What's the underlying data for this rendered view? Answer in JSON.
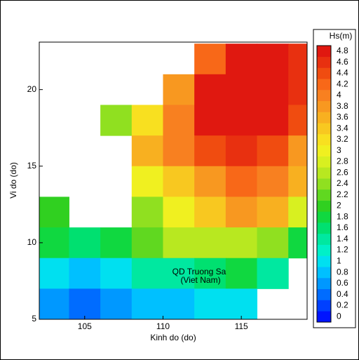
{
  "chart_data": {
    "type": "field",
    "x_label": "Kinh do (do)",
    "y_label": "Vi do (do)",
    "colorbar_label": "Hs(m)",
    "annotations": [
      "QD Truong Sa",
      "(Viet Nam)"
    ],
    "xlim": [
      102.1,
      119.2
    ],
    "ylim": [
      5,
      23.1
    ],
    "xticks": [
      105,
      110,
      115
    ],
    "yticks": [
      5,
      10,
      15,
      20
    ],
    "x": [
      103,
      105,
      107,
      109,
      111,
      113,
      115,
      117,
      119
    ],
    "y": [
      22,
      20,
      18,
      16,
      14,
      12,
      10,
      8,
      6
    ],
    "values": [
      [
        null,
        null,
        null,
        null,
        null,
        4.3,
        4.8,
        4.8,
        4.6
      ],
      [
        null,
        null,
        null,
        null,
        3.8,
        4.8,
        4.9,
        4.9,
        4.6
      ],
      [
        null,
        null,
        2.4,
        3.2,
        4.0,
        4.8,
        4.9,
        4.9,
        4.4
      ],
      [
        null,
        null,
        null,
        3.6,
        4.0,
        4.4,
        4.6,
        4.4,
        3.8
      ],
      [
        null,
        null,
        null,
        3.0,
        3.4,
        3.8,
        4.2,
        4.0,
        3.6
      ],
      [
        2.0,
        null,
        null,
        2.4,
        3.0,
        3.4,
        3.8,
        3.6,
        2.8
      ],
      [
        1.8,
        1.6,
        1.8,
        2.2,
        2.6,
        2.6,
        2.6,
        2.4,
        1.8
      ],
      [
        1.0,
        0.8,
        1.0,
        1.4,
        1.4,
        1.6,
        1.8,
        1.4,
        null
      ],
      [
        0.6,
        0.4,
        0.6,
        0.8,
        0.8,
        1.0,
        1.0,
        null,
        null
      ]
    ],
    "clim": [
      -0.1,
      4.9
    ],
    "cticks": [
      0,
      0.2,
      0.4,
      0.6,
      0.8,
      1,
      1.2,
      1.4,
      1.6,
      1.8,
      2,
      2.2,
      2.4,
      2.6,
      2.8,
      3,
      3.2,
      3.4,
      3.6,
      3.8,
      4,
      4.2,
      4.4,
      4.6,
      4.8
    ],
    "colors": [
      "#0014ff",
      "#0040ff",
      "#006cff",
      "#0098ff",
      "#00c0ff",
      "#00e0f0",
      "#00f0c8",
      "#00e8a0",
      "#00e070",
      "#10d840",
      "#30d020",
      "#60d820",
      "#90e020",
      "#b8e820",
      "#d8f020",
      "#f0f020",
      "#f8e020",
      "#f8c820",
      "#f8b020",
      "#f89820",
      "#f88020",
      "#f86818",
      "#f04c10",
      "#e83010",
      "#e01810"
    ]
  }
}
